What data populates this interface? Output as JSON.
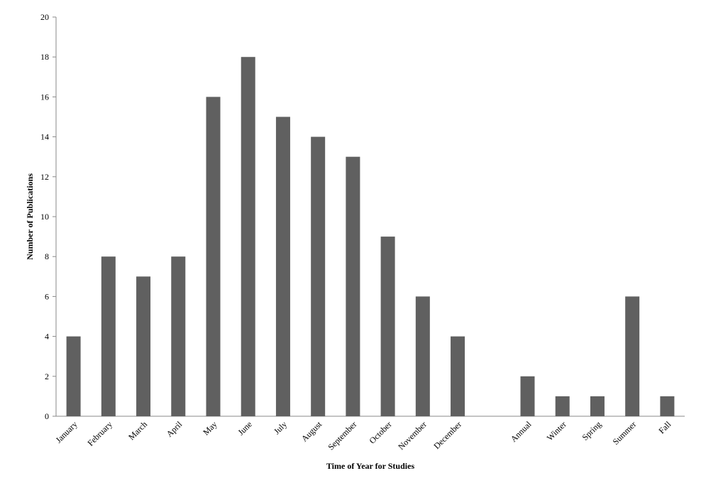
{
  "chart_data": {
    "type": "bar",
    "x_label": "Time of Year for Studies",
    "y_label": "Number of Publications",
    "categories": [
      "January",
      "February",
      "March",
      "April",
      "May",
      "June",
      "July",
      "August",
      "September",
      "October",
      "November",
      "December",
      null,
      "Annual",
      "Winter",
      "Spring",
      "Summer",
      "Fall"
    ],
    "values": [
      4,
      8,
      7,
      8,
      16,
      18,
      15,
      14,
      13,
      9,
      6,
      4,
      null,
      2,
      1,
      1,
      6,
      1
    ],
    "color": "#606060",
    "ylim": [
      0,
      20
    ],
    "yticks": [
      0,
      2,
      4,
      6,
      8,
      10,
      12,
      14,
      16,
      18,
      20
    ],
    "grid": false
  }
}
